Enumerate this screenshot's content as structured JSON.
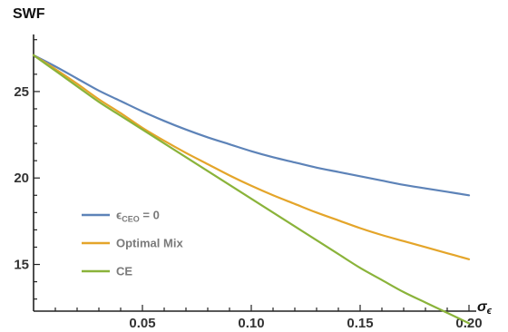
{
  "chart_data": {
    "type": "line",
    "ylabel": "SWF",
    "xlabel": "σϵ",
    "xlim": [
      0,
      0.2
    ],
    "ylim": [
      12.3,
      28.3
    ],
    "x_ticks": [
      0.05,
      0.1,
      0.15,
      0.2
    ],
    "x_tick_labels": [
      "0.05",
      "0.10",
      "0.15",
      "0.20"
    ],
    "y_ticks": [
      15,
      20,
      25
    ],
    "y_tick_labels": [
      "15",
      "20",
      "25"
    ],
    "grid": false,
    "legend_position": "left-middle",
    "series": [
      {
        "name": "ϵCEO = 0",
        "label_main": "ϵ",
        "label_sub": "CEO",
        "label_tail": " = 0",
        "color": "#5d83b8",
        "x": [
          0,
          0.01,
          0.02,
          0.03,
          0.04,
          0.05,
          0.06,
          0.07,
          0.08,
          0.09,
          0.1,
          0.11,
          0.12,
          0.13,
          0.14,
          0.15,
          0.16,
          0.17,
          0.18,
          0.19,
          0.2
        ],
        "values": [
          27.1,
          26.45,
          25.75,
          25.05,
          24.45,
          23.85,
          23.3,
          22.8,
          22.35,
          21.95,
          21.55,
          21.2,
          20.9,
          20.6,
          20.35,
          20.1,
          19.85,
          19.6,
          19.4,
          19.2,
          19.0
        ]
      },
      {
        "name": "Optimal Mix",
        "color": "#e4a52a",
        "x": [
          0,
          0.01,
          0.02,
          0.03,
          0.04,
          0.05,
          0.06,
          0.07,
          0.08,
          0.09,
          0.1,
          0.11,
          0.12,
          0.13,
          0.14,
          0.15,
          0.16,
          0.17,
          0.18,
          0.19,
          0.2
        ],
        "values": [
          27.1,
          26.3,
          25.45,
          24.55,
          23.75,
          22.9,
          22.15,
          21.45,
          20.8,
          20.15,
          19.55,
          19.0,
          18.5,
          18.0,
          17.55,
          17.1,
          16.7,
          16.35,
          16.0,
          15.65,
          15.3
        ]
      },
      {
        "name": "CE",
        "color": "#8ab33a",
        "x": [
          0,
          0.01,
          0.02,
          0.03,
          0.04,
          0.05,
          0.06,
          0.07,
          0.08,
          0.09,
          0.1,
          0.11,
          0.12,
          0.13,
          0.14,
          0.15,
          0.16,
          0.17,
          0.18,
          0.19,
          0.2
        ],
        "values": [
          27.1,
          26.2,
          25.3,
          24.4,
          23.6,
          22.8,
          22.0,
          21.2,
          20.4,
          19.6,
          18.8,
          18.0,
          17.2,
          16.4,
          15.6,
          14.8,
          14.1,
          13.4,
          12.8,
          12.2,
          11.6
        ]
      }
    ]
  }
}
